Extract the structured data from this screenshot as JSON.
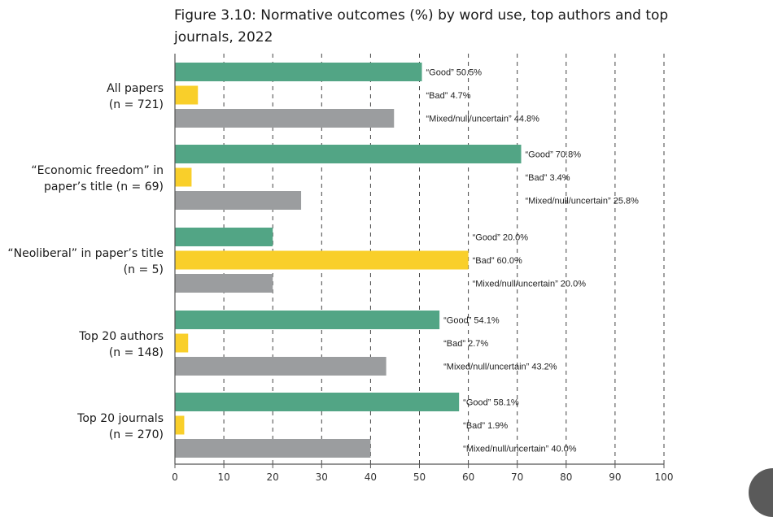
{
  "chart_data": {
    "type": "bar",
    "orientation": "horizontal",
    "title": "Figure 3.10: Normative outcomes (%) by word use, top authors and top journals, 2022",
    "xlim": [
      0,
      100
    ],
    "xticks": [
      0,
      10,
      20,
      30,
      40,
      50,
      60,
      70,
      80,
      90,
      100
    ],
    "grid": "vertical dashed",
    "categories": [
      {
        "label_lines": [
          "All papers",
          "(n = 721)"
        ]
      },
      {
        "label_lines": [
          "“Economic freedom” in",
          "paper’s title (n = 69)"
        ]
      },
      {
        "label_lines": [
          "“Neoliberal” in paper’s title",
          "(n = 5)"
        ]
      },
      {
        "label_lines": [
          "Top 20 authors",
          "(n = 148)"
        ]
      },
      {
        "label_lines": [
          "Top 20 journals",
          "(n = 270)"
        ]
      }
    ],
    "series": [
      {
        "color": "#52a585",
        "values": [
          50.5,
          70.8,
          20.0,
          54.1,
          58.1
        ],
        "labels": [
          "“Good” 50.5%",
          "“Good” 70.8%",
          "“Good” 20.0%",
          "“Good” 54.1%",
          "“Good” 58.1%"
        ]
      },
      {
        "color": "#f9cf2a",
        "values": [
          4.7,
          3.4,
          60.0,
          2.7,
          1.9
        ],
        "labels": [
          "“Bad” 4.7%",
          "“Bad” 3.4%",
          "“Bad” 60.0%",
          "“Bad” 2.7%",
          "“Bad” 1.9%"
        ]
      },
      {
        "color": "#9b9d9f",
        "values": [
          44.8,
          25.8,
          20.0,
          43.2,
          40.0
        ],
        "labels": [
          "“Mixed/null/uncertain” 44.8%",
          "“Mixed/null/uncertain” 25.8%",
          "“Mixed/null/uncertain” 20.0%",
          "“Mixed/null/uncertain” 43.2%",
          "“Mixed/null/uncertain” 40.0%"
        ]
      }
    ]
  }
}
